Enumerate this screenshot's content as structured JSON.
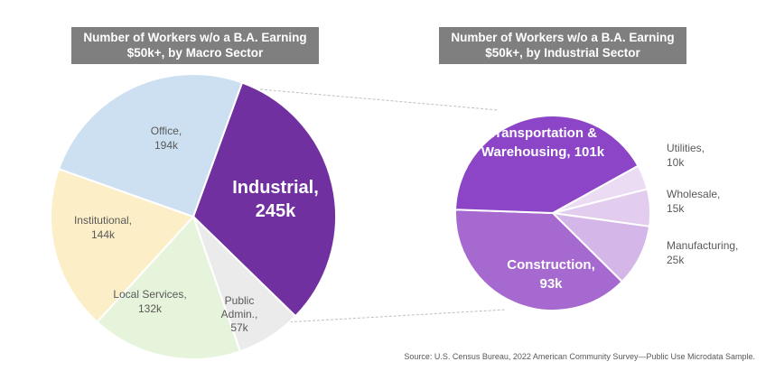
{
  "chart_data": [
    {
      "type": "pie",
      "title": [
        "Number of Workers w/o a B.A. Earning",
        "$50k+, by Macro Sector"
      ],
      "slices": [
        {
          "label": [
            "Industrial,",
            "245k"
          ],
          "value": 245,
          "color": "#7030a0"
        },
        {
          "label": [
            "Public",
            "Admin.,",
            "57k"
          ],
          "value": 57,
          "color": "#ebebeb"
        },
        {
          "label": [
            "Local Services,",
            "132k"
          ],
          "value": 132,
          "color": "#e6f4dc"
        },
        {
          "label": [
            "Institutional,",
            "144k"
          ],
          "value": 144,
          "color": "#fcefc8"
        },
        {
          "label": [
            "Office,",
            "194k"
          ],
          "value": 194,
          "color": "#cde0f1"
        }
      ]
    },
    {
      "type": "pie",
      "title": [
        "Number of Workers w/o a B.A. Earning",
        "$50k+, by Industrial Sector"
      ],
      "slices": [
        {
          "label": [
            "Utilities,",
            "10k"
          ],
          "value": 10,
          "color": "#ecdcf3"
        },
        {
          "label": [
            "Wholesale,",
            "15k"
          ],
          "value": 15,
          "color": "#e2cdef"
        },
        {
          "label": [
            "Manufacturing,",
            "25k"
          ],
          "value": 25,
          "color": "#d5b6e8"
        },
        {
          "label": [
            "Construction,",
            "93k"
          ],
          "value": 93,
          "color": "#a569cf"
        },
        {
          "label": [
            "Transportation &",
            "Warehousing, 101k"
          ],
          "value": 101,
          "color": "#8b45c6"
        }
      ]
    }
  ],
  "source": "Source: U.S. Census Bureau, 2022 American Community Survey—Public Use Microdata Sample."
}
